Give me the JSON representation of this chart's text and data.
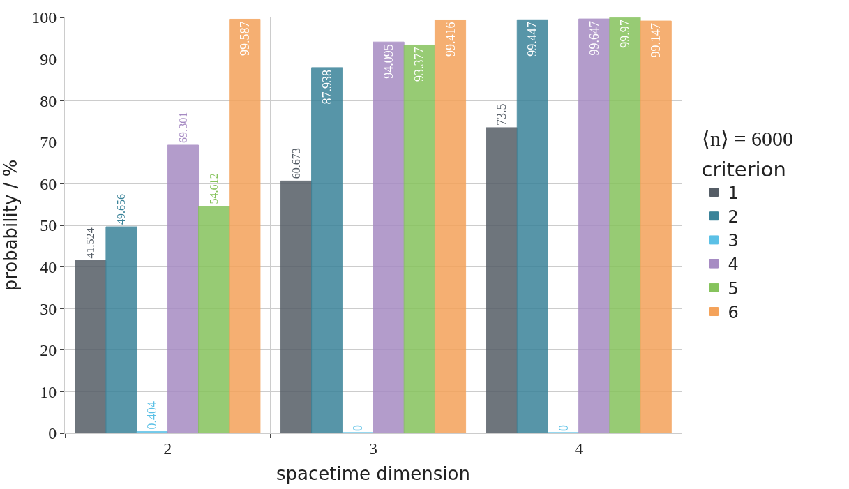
{
  "chart_data": {
    "type": "bar",
    "xlabel": "spacetime dimension",
    "ylabel": "probability / %",
    "legend_title": "criterion",
    "annotations": [
      "⟨n⟩ = 6000"
    ],
    "categories": [
      "2",
      "3",
      "4"
    ],
    "series": [
      {
        "name": "1",
        "color": "#555d66",
        "values": [
          41.524,
          60.673,
          73.5
        ]
      },
      {
        "name": "2",
        "color": "#3a8399",
        "values": [
          49.656,
          87.938,
          99.447
        ]
      },
      {
        "name": "3",
        "color": "#5bc0e6",
        "values": [
          0.404,
          0,
          0
        ]
      },
      {
        "name": "4",
        "color": "#a68bc3",
        "values": [
          69.301,
          94.095,
          99.647
        ]
      },
      {
        "name": "5",
        "color": "#86c35c",
        "values": [
          54.612,
          93.377,
          99.97
        ]
      },
      {
        "name": "6",
        "color": "#f4a25a",
        "values": [
          99.587,
          99.416,
          99.147
        ]
      }
    ],
    "ylim": [
      0,
      100
    ],
    "yticks": [
      0,
      10,
      20,
      30,
      40,
      50,
      60,
      70,
      80,
      90,
      100
    ],
    "grid": true,
    "legend": "right",
    "data_labels": true
  }
}
